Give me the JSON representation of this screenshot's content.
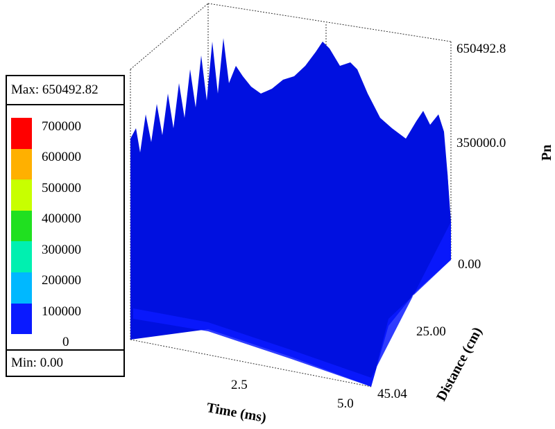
{
  "chart_data": {
    "type": "surface3d",
    "z_label": "Pn",
    "x_label": "Time (ms)",
    "y_label": "Distance (cm)",
    "x_ticks": [
      "2.5",
      "5.0"
    ],
    "y_ticks": [
      "0.00",
      "25.00",
      "45.04"
    ],
    "z_ticks": [
      "650492.8",
      "350000.0",
      "0.00"
    ],
    "x_range": [
      0,
      5.0
    ],
    "y_range": [
      0,
      45.04
    ],
    "z_range": [
      0,
      650492.82
    ],
    "legend": {
      "max_text": "Max: 650492.82",
      "min_text": "Min: 0.00",
      "levels": [
        "700000",
        "600000",
        "500000",
        "400000",
        "300000",
        "200000",
        "100000",
        "0"
      ],
      "colors": [
        "#ff0000",
        "#ffb000",
        "#c8ff00",
        "#20e020",
        "#00f0b0",
        "#00b8ff",
        "#0a1aff"
      ]
    }
  }
}
